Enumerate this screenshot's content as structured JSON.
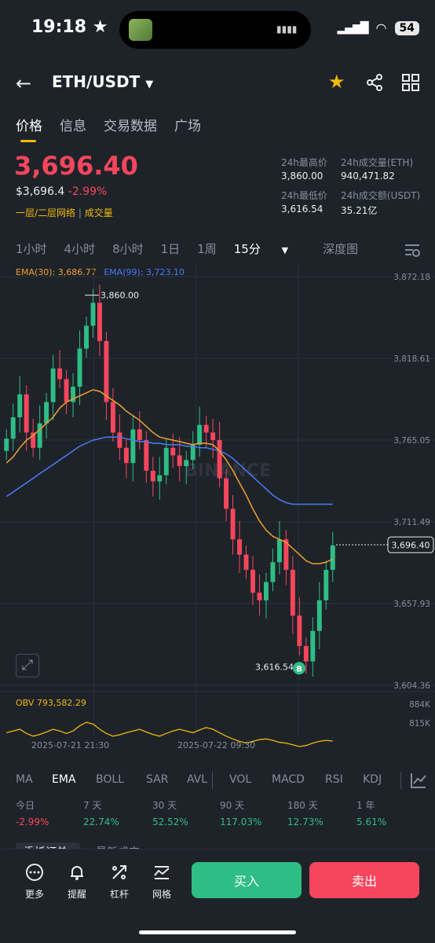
{
  "status_bar": {
    "time": "19:18",
    "battery": "54"
  },
  "header": {
    "pair": "ETH/USDT"
  },
  "tabs": [
    {
      "label": "价格"
    },
    {
      "label": "信息"
    },
    {
      "label": "交易数据"
    },
    {
      "label": "广场"
    }
  ],
  "ticker": {
    "price": "3,696.40",
    "usd_price": "$3,696.4",
    "change": "-2.99%",
    "layer_label": "一层/二层网络",
    "separator": "|",
    "volume_label": "成交量",
    "high_label": "24h最高价",
    "high": "3,860.00",
    "low_label": "24h最低价",
    "low": "3,616.54",
    "vol_eth_label": "24h成交量(ETH)",
    "vol_eth": "940,471.82",
    "vol_usdt_label": "24h成交额(USDT)",
    "vol_usdt": "35.21亿"
  },
  "intervals": [
    "1小时",
    "4小时",
    "8小时",
    "1日",
    "1周",
    "15分",
    "深度图"
  ],
  "chart_data": {
    "type": "candlestick",
    "ema30_label": "EMA(30): 3,686.77",
    "ema99_label": "EMA(99): 3,723.10",
    "y_ticks": [
      "3,872.18",
      "3,818.61",
      "3,765.05",
      "3,711.49",
      "3,657.93",
      "3,604.36"
    ],
    "y_tick_values": [
      3872.18,
      3818.61,
      3765.05,
      3711.49,
      3657.93,
      3604.36
    ],
    "high_marker": "3,860.00",
    "low_marker": "3,616.54",
    "last_price": "3,696.40",
    "buy_marker": "B",
    "watermark": "BINANCE",
    "x_labels": [
      "2025-07-21 21:30",
      "2025-07-22 09:30"
    ],
    "obv_label": "OBV 793,582.29",
    "obv_ticks": [
      "884K",
      "815K"
    ],
    "closes": [
      3766,
      3780,
      3795,
      3770,
      3760,
      3776,
      3790,
      3812,
      3805,
      3790,
      3800,
      3825,
      3840,
      3855,
      3830,
      3790,
      3770,
      3760,
      3750,
      3772,
      3765,
      3745,
      3738,
      3742,
      3760,
      3755,
      3748,
      3752,
      3762,
      3775,
      3770,
      3765,
      3740,
      3720,
      3700,
      3690,
      3680,
      3665,
      3660,
      3672,
      3685,
      3700,
      3680,
      3650,
      3630,
      3620,
      3640,
      3660,
      3680,
      3696
    ],
    "ema30": [
      3750,
      3754,
      3760,
      3765,
      3768,
      3772,
      3776,
      3780,
      3786,
      3790,
      3792,
      3794,
      3796,
      3798,
      3797,
      3794,
      3791,
      3788,
      3784,
      3781,
      3778,
      3774,
      3770,
      3767,
      3766,
      3765,
      3764,
      3763,
      3762,
      3763,
      3763,
      3762,
      3758,
      3752,
      3745,
      3737,
      3729,
      3720,
      3712,
      3706,
      3702,
      3700,
      3698,
      3694,
      3690,
      3686,
      3684,
      3684,
      3685,
      3687
    ],
    "ema99": [
      3728,
      3731,
      3734,
      3737,
      3740,
      3743,
      3746,
      3749,
      3752,
      3755,
      3758,
      3761,
      3763,
      3765,
      3766,
      3767,
      3767,
      3767,
      3766,
      3765,
      3764,
      3764,
      3763,
      3763,
      3762,
      3762,
      3762,
      3761,
      3761,
      3760,
      3760,
      3759,
      3758,
      3756,
      3753,
      3749,
      3745,
      3741,
      3737,
      3733,
      3729,
      3726,
      3724,
      3723,
      3723,
      3723,
      3723,
      3723,
      3723,
      3723
    ],
    "obv": [
      0.6,
      0.55,
      0.5,
      0.62,
      0.7,
      0.65,
      0.58,
      0.5,
      0.55,
      0.62,
      0.55,
      0.4,
      0.3,
      0.35,
      0.5,
      0.62,
      0.7,
      0.66,
      0.6,
      0.55,
      0.5,
      0.58,
      0.65,
      0.7,
      0.62,
      0.55,
      0.5,
      0.55,
      0.6,
      0.52,
      0.45,
      0.5,
      0.6,
      0.7,
      0.78,
      0.85,
      0.9,
      0.85,
      0.8,
      0.78,
      0.82,
      0.88,
      0.9,
      0.95,
      1.0,
      0.97,
      0.9,
      0.85,
      0.82,
      0.84
    ]
  },
  "indicators": [
    "MA",
    "EMA",
    "BOLL",
    "SAR",
    "AVL",
    "VOL",
    "MACD",
    "RSI",
    "KDJ"
  ],
  "performance": [
    {
      "label": "今日",
      "value": "-2.99%",
      "color": "#f6465d"
    },
    {
      "label": "7 天",
      "value": "22.74%",
      "color": "#2ebd85"
    },
    {
      "label": "30 天",
      "value": "52.52%",
      "color": "#2ebd85"
    },
    {
      "label": "90 天",
      "value": "117.03%",
      "color": "#2ebd85"
    },
    {
      "label": "180 天",
      "value": "12.73%",
      "color": "#2ebd85"
    },
    {
      "label": "1 年",
      "value": "5.61%",
      "color": "#2ebd85"
    }
  ],
  "sub_tabs": [
    "委托订单",
    "最新成交"
  ],
  "bottom_nav": [
    {
      "label": "更多",
      "icon": "more-icon"
    },
    {
      "label": "提醒",
      "icon": "bell-icon"
    },
    {
      "label": "杠杆",
      "icon": "leverage-icon"
    },
    {
      "label": "网格",
      "icon": "grid-trade-icon"
    }
  ],
  "buy_label": "买入",
  "sell_label": "卖出"
}
